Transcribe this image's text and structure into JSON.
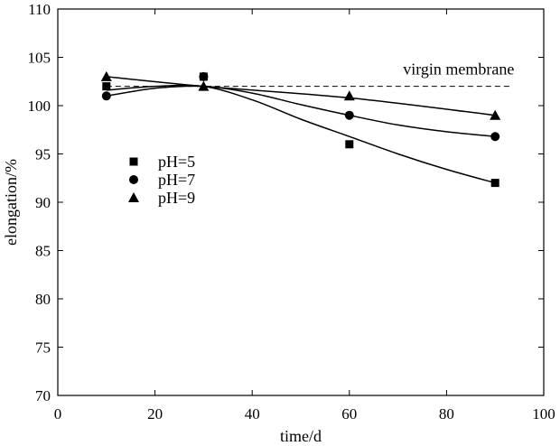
{
  "chart_data": {
    "type": "scatter",
    "xlabel": "time/d",
    "ylabel": "elongation/%",
    "xlim": [
      0,
      100
    ],
    "ylim": [
      70,
      110
    ],
    "xticks": [
      0,
      20,
      40,
      60,
      80,
      100
    ],
    "yticks": [
      70,
      75,
      80,
      85,
      90,
      95,
      100,
      105,
      110
    ],
    "grid": false,
    "legend_position": "center-left",
    "reference_line": {
      "label": "virgin membrane",
      "y": 102,
      "x_range": [
        10,
        93
      ],
      "style": "dashed"
    },
    "series": [
      {
        "name": "pH=5",
        "marker": "square",
        "x": [
          10,
          30,
          60,
          90
        ],
        "y": [
          102,
          103,
          96,
          92
        ],
        "curve": [
          [
            10,
            101.6
          ],
          [
            20,
            102.0
          ],
          [
            30,
            102.0
          ],
          [
            40,
            100.6
          ],
          [
            50,
            98.6
          ],
          [
            60,
            96.8
          ],
          [
            70,
            95.0
          ],
          [
            80,
            93.4
          ],
          [
            90,
            92.0
          ]
        ]
      },
      {
        "name": "pH=7",
        "marker": "circle",
        "x": [
          10,
          30,
          60,
          90
        ],
        "y": [
          101,
          103,
          99,
          96.8
        ],
        "curve": [
          [
            10,
            101.0
          ],
          [
            20,
            101.8
          ],
          [
            30,
            102.0
          ],
          [
            40,
            101.3
          ],
          [
            50,
            100.1
          ],
          [
            60,
            99.0
          ],
          [
            70,
            98.0
          ],
          [
            80,
            97.3
          ],
          [
            90,
            96.8
          ]
        ]
      },
      {
        "name": "pH=9",
        "marker": "triangle",
        "x": [
          10,
          30,
          60,
          90
        ],
        "y": [
          103,
          102,
          101,
          99
        ],
        "curve": [
          [
            10,
            103.0
          ],
          [
            30,
            102.0
          ],
          [
            60,
            100.8
          ],
          [
            90,
            99.0
          ]
        ]
      }
    ]
  }
}
